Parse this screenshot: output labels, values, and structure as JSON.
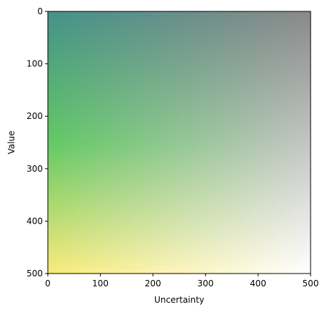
{
  "chart_data": {
    "type": "heatmap",
    "title": "",
    "xlabel": "Uncertainty",
    "ylabel": "Value",
    "xlim": [
      0,
      500
    ],
    "ylim": [
      500,
      0
    ],
    "x_ticks": [
      0,
      100,
      200,
      300,
      400,
      500
    ],
    "y_ticks": [
      0,
      100,
      200,
      300,
      400,
      500
    ],
    "grid": false,
    "legend": "none",
    "colormap": {
      "value_colors": [
        {
          "value": 0,
          "color": "#45928a"
        },
        {
          "value": 250,
          "color": "#62c965"
        },
        {
          "value": 500,
          "color": "#faeb7a"
        }
      ],
      "uncertainty_end_colors": [
        {
          "value": 0,
          "color": "#8a8a8a"
        },
        {
          "value": 500,
          "color": "#ffffff"
        }
      ]
    }
  }
}
